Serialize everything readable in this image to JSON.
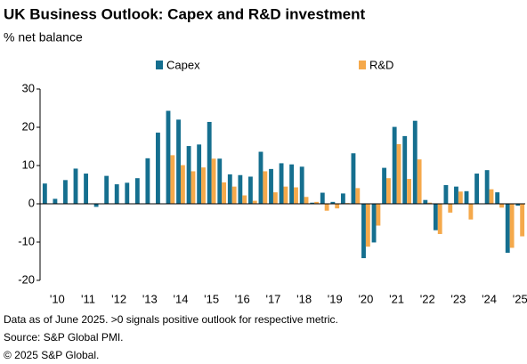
{
  "chart_data": {
    "type": "bar",
    "title": "UK Business Outlook: Capex and R&D investment",
    "subtitle": "% net balance",
    "notes": [
      "Data as of June 2025. >0 signals positive outlook for respective metric.",
      "Source: S&P Global PMI.",
      "© 2025 S&P Global."
    ],
    "categories": [
      null,
      "'10",
      null,
      null,
      "'11",
      null,
      null,
      "'12",
      null,
      null,
      "'13",
      null,
      null,
      "'14",
      null,
      null,
      "'15",
      null,
      null,
      "'16",
      null,
      null,
      "'17",
      null,
      null,
      "'18",
      null,
      null,
      "'19",
      null,
      null,
      "'20",
      null,
      null,
      "'21",
      null,
      null,
      "'22",
      null,
      null,
      "'23",
      null,
      null,
      "'24",
      null,
      null,
      "'25"
    ],
    "series": [
      {
        "name": "Capex",
        "color": "#156f8f",
        "values": [
          5.3,
          1.3,
          6.2,
          9.2,
          7.9,
          -0.8,
          7.3,
          5.1,
          5.5,
          6.7,
          11.9,
          18.6,
          24.3,
          22,
          15.1,
          15.5,
          21.4,
          11.8,
          7.7,
          7.5,
          7.1,
          13.6,
          9.1,
          10.6,
          10.3,
          9.7,
          0.3,
          2.9,
          0.5,
          2.7,
          13.2,
          -14.2,
          -10.1,
          9.4,
          20.1,
          17.7,
          21.7,
          1.0,
          -6.9,
          4.9,
          4.5,
          3.3,
          7.9,
          8.8,
          3.0,
          -12.8,
          -0.5
        ]
      },
      {
        "name": "R&D",
        "color": "#f5a94b",
        "values": [
          null,
          null,
          null,
          null,
          null,
          null,
          null,
          null,
          null,
          null,
          null,
          null,
          12.7,
          10.1,
          8.5,
          9.5,
          11.8,
          5.6,
          4.5,
          2.2,
          0.8,
          8.5,
          3.0,
          4.5,
          4.3,
          1.8,
          0.5,
          -1.8,
          -1.2,
          0.2,
          4.1,
          -11.2,
          -5.7,
          6.7,
          15.6,
          6.5,
          11.6,
          0.3,
          -7.9,
          -2.3,
          3.2,
          -4.1,
          0.1,
          3.8,
          -1.0,
          -11.5,
          -8.5
        ]
      }
    ],
    "ylim": [
      -20,
      30
    ],
    "yticks": [
      -20,
      -10,
      0,
      10,
      20,
      30
    ]
  }
}
